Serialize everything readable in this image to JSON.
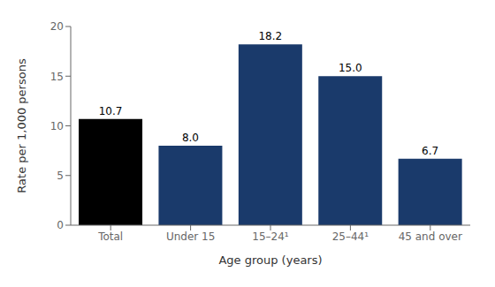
{
  "chart_data": {
    "type": "bar",
    "categories": [
      "Total",
      "Under 15",
      "15–24¹",
      "25–44¹",
      "45 and over"
    ],
    "values": [
      10.7,
      8.0,
      18.2,
      15.0,
      6.7
    ],
    "value_labels": [
      "10.7",
      "8.0",
      "18.2",
      "15.0",
      "6.7"
    ],
    "data_labels": true,
    "colors": [
      "#000000",
      "#1a3a6b",
      "#1a3a6b",
      "#1a3a6b",
      "#1a3a6b"
    ],
    "xlabel": "Age group (years)",
    "ylabel": "Rate per 1,000 persons",
    "ylim": [
      0,
      20
    ],
    "yticks": [
      0,
      5,
      10,
      15,
      20
    ],
    "grid": false
  }
}
